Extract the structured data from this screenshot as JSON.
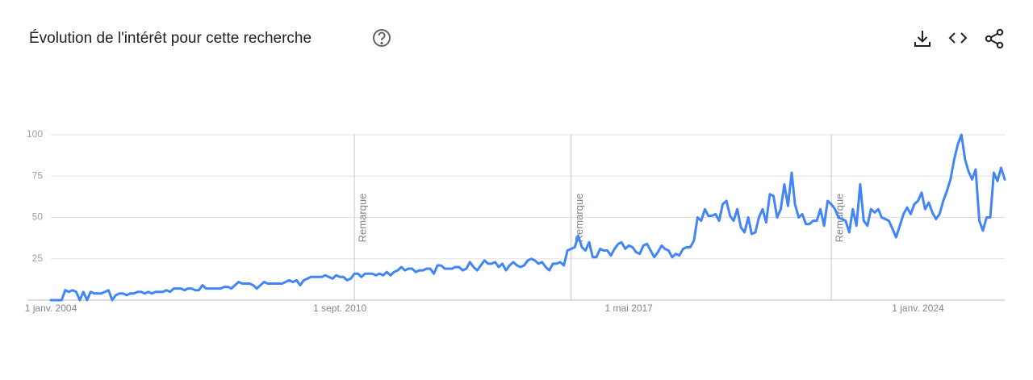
{
  "chart_data": {
    "type": "line",
    "title": "Évolution de l'intérêt pour cette recherche",
    "x": [
      "2004-01-01",
      "2004-02-01",
      "2004-03-01",
      "2004-04-01",
      "2004-05-01",
      "2004-06-01",
      "2004-07-01",
      "2004-08-01",
      "2004-09-01",
      "2004-10-01",
      "2004-11-01",
      "2004-12-01",
      "2005-01-01",
      "2005-02-01",
      "2005-03-01",
      "2005-04-01",
      "2005-05-01",
      "2005-06-01",
      "2005-07-01",
      "2005-08-01",
      "2005-09-01",
      "2005-10-01",
      "2005-11-01",
      "2005-12-01",
      "2006-01-01",
      "2006-02-01",
      "2006-03-01",
      "2006-04-01",
      "2006-05-01",
      "2006-06-01",
      "2006-07-01",
      "2006-08-01",
      "2006-09-01",
      "2006-10-01",
      "2006-11-01",
      "2006-12-01",
      "2007-01-01",
      "2007-02-01",
      "2007-03-01",
      "2007-04-01",
      "2007-05-01",
      "2007-06-01",
      "2007-07-01",
      "2007-08-01",
      "2007-09-01",
      "2007-10-01",
      "2007-11-01",
      "2007-12-01",
      "2008-01-01",
      "2008-02-01",
      "2008-03-01",
      "2008-04-01",
      "2008-05-01",
      "2008-06-01",
      "2008-07-01",
      "2008-08-01",
      "2008-09-01",
      "2008-10-01",
      "2008-11-01",
      "2008-12-01",
      "2009-01-01",
      "2009-02-01",
      "2009-03-01",
      "2009-04-01",
      "2009-05-01",
      "2009-06-01",
      "2009-07-01",
      "2009-08-01",
      "2009-09-01",
      "2009-10-01",
      "2009-11-01",
      "2009-12-01",
      "2010-01-01",
      "2010-02-01",
      "2010-03-01",
      "2010-04-01",
      "2010-05-01",
      "2010-06-01",
      "2010-07-01",
      "2010-08-01",
      "2010-09-01",
      "2010-10-01",
      "2010-11-01",
      "2010-12-01",
      "2011-01-01",
      "2011-02-01",
      "2011-03-01",
      "2011-04-01",
      "2011-05-01",
      "2011-06-01",
      "2011-07-01",
      "2011-08-01",
      "2011-09-01",
      "2011-10-01",
      "2011-11-01",
      "2011-12-01",
      "2012-01-01",
      "2012-02-01",
      "2012-03-01",
      "2012-04-01",
      "2012-05-01",
      "2012-06-01",
      "2012-07-01",
      "2012-08-01",
      "2012-09-01",
      "2012-10-01",
      "2012-11-01",
      "2012-12-01",
      "2013-01-01",
      "2013-02-01",
      "2013-03-01",
      "2013-04-01",
      "2013-05-01",
      "2013-06-01",
      "2013-07-01",
      "2013-08-01",
      "2013-09-01",
      "2013-10-01",
      "2013-11-01",
      "2013-12-01",
      "2014-01-01",
      "2014-02-01",
      "2014-03-01",
      "2014-04-01",
      "2014-05-01",
      "2014-06-01",
      "2014-07-01",
      "2014-08-01",
      "2014-09-01",
      "2014-10-01",
      "2014-11-01",
      "2014-12-01",
      "2015-01-01",
      "2015-02-01",
      "2015-03-01",
      "2015-04-01",
      "2015-05-01",
      "2015-06-01",
      "2015-07-01",
      "2015-08-01",
      "2015-09-01",
      "2015-10-01",
      "2015-11-01",
      "2015-12-01",
      "2016-01-01",
      "2016-02-01",
      "2016-03-01",
      "2016-04-01",
      "2016-05-01",
      "2016-06-01",
      "2016-07-01",
      "2016-08-01",
      "2016-09-01",
      "2016-10-01",
      "2016-11-01",
      "2016-12-01",
      "2017-01-01",
      "2017-02-01",
      "2017-03-01",
      "2017-04-01",
      "2017-05-01",
      "2017-06-01",
      "2017-07-01",
      "2017-08-01",
      "2017-09-01",
      "2017-10-01",
      "2017-11-01",
      "2017-12-01",
      "2018-01-01",
      "2018-02-01",
      "2018-03-01",
      "2018-04-01",
      "2018-05-01",
      "2018-06-01",
      "2018-07-01",
      "2018-08-01",
      "2018-09-01",
      "2018-10-01",
      "2018-11-01",
      "2018-12-01",
      "2019-01-01",
      "2019-02-01",
      "2019-03-01",
      "2019-04-01",
      "2019-05-01",
      "2019-06-01",
      "2019-07-01",
      "2019-08-01",
      "2019-09-01",
      "2019-10-01",
      "2019-11-01",
      "2019-12-01",
      "2020-01-01",
      "2020-02-01",
      "2020-03-01",
      "2020-04-01",
      "2020-05-01",
      "2020-06-01",
      "2020-07-01",
      "2020-08-01",
      "2020-09-01",
      "2020-10-01",
      "2020-11-01",
      "2020-12-01",
      "2021-01-01",
      "2021-02-01",
      "2021-03-01",
      "2021-04-01",
      "2021-05-01",
      "2021-06-01",
      "2021-07-01",
      "2021-08-01",
      "2021-09-01",
      "2021-10-01",
      "2021-11-01",
      "2021-12-01",
      "2022-01-01",
      "2022-02-01",
      "2022-03-01",
      "2022-04-01",
      "2022-05-01",
      "2022-06-01",
      "2022-07-01",
      "2022-08-01",
      "2022-09-01",
      "2022-10-01",
      "2022-11-01",
      "2022-12-01",
      "2023-01-01",
      "2023-02-01",
      "2023-03-01",
      "2023-04-01",
      "2023-05-01",
      "2023-06-01",
      "2023-07-01",
      "2023-08-01",
      "2023-09-01",
      "2023-10-01",
      "2023-11-01",
      "2023-12-01",
      "2024-01-01",
      "2024-02-01",
      "2024-03-01",
      "2024-04-01",
      "2024-05-01",
      "2024-06-01",
      "2024-07-01",
      "2024-08-01",
      "2024-09-01",
      "2024-10-01",
      "2024-11-01",
      "2024-12-01",
      "2025-01-01",
      "2025-02-01",
      "2025-03-01",
      "2025-04-01",
      "2025-05-01",
      "2025-06-01",
      "2025-07-01",
      "2025-08-01",
      "2025-09-01",
      "2025-10-01",
      "2025-11-01",
      "2025-12-01",
      "2026-01-01"
    ],
    "series": [
      {
        "color": "#4285f4",
        "values": [
          0,
          0,
          0,
          0,
          6,
          5,
          6,
          5,
          0,
          5,
          0,
          5,
          4,
          4,
          4,
          5,
          6,
          0,
          3,
          4,
          4,
          3,
          4,
          4,
          5,
          5,
          4,
          5,
          4,
          5,
          5,
          5,
          6,
          5,
          7,
          7,
          7,
          6,
          7,
          7,
          6,
          6,
          9,
          7,
          7,
          7,
          7,
          7,
          8,
          8,
          7,
          9,
          11,
          10,
          10,
          10,
          9,
          7,
          9,
          11,
          10,
          10,
          10,
          10,
          10,
          11,
          12,
          11,
          12,
          9,
          12,
          13,
          14,
          14,
          14,
          14,
          15,
          14,
          13,
          15,
          14,
          14,
          12,
          13,
          16,
          16,
          14,
          16,
          16,
          16,
          15,
          16,
          15,
          17,
          15,
          17,
          18,
          20,
          18,
          19,
          19,
          17,
          18,
          18,
          19,
          19,
          16,
          21,
          21,
          19,
          19,
          19,
          20,
          20,
          18,
          19,
          23,
          20,
          18,
          21,
          24,
          22,
          22,
          23,
          20,
          22,
          18,
          21,
          23,
          21,
          20,
          21,
          24,
          25,
          24,
          22,
          23,
          20,
          18,
          22,
          22,
          23,
          21,
          30,
          31,
          32,
          39,
          32,
          30,
          35,
          26,
          26,
          31,
          30,
          30,
          27,
          31,
          34,
          35,
          31,
          33,
          32,
          29,
          28,
          33,
          34,
          30,
          26,
          29,
          33,
          31,
          30,
          26,
          28,
          27,
          31,
          32,
          32,
          36,
          50,
          48,
          55,
          51,
          51,
          52,
          48,
          58,
          60,
          51,
          48,
          55,
          44,
          41,
          50,
          40,
          41,
          50,
          55,
          47,
          64,
          63,
          50,
          55,
          70,
          57,
          77,
          58,
          50,
          52,
          46,
          46,
          48,
          48,
          55,
          45,
          60,
          58,
          55,
          50,
          49,
          48,
          41,
          55,
          45,
          70,
          48,
          45,
          55,
          53,
          55,
          50,
          49,
          48,
          43,
          38,
          45,
          52,
          56,
          52,
          58,
          60,
          65,
          55,
          59,
          53,
          49,
          52,
          60,
          66,
          73,
          85,
          94,
          100,
          85,
          78,
          73,
          79,
          48,
          42,
          50,
          50,
          77,
          72,
          80,
          73
        ]
      }
    ],
    "xlim": [
      "2004-01-01",
      "2026-01-01"
    ],
    "xticks": [
      {
        "value": "2004-01-01",
        "label": "1 janv. 2004"
      },
      {
        "value": "2010-09-01",
        "label": "1 sept. 2010"
      },
      {
        "value": "2017-05-01",
        "label": "1 mai 2017"
      },
      {
        "value": "2024-01-01",
        "label": "1 janv. 2024"
      }
    ],
    "ylim": [
      0,
      100
    ],
    "yticks": [
      25,
      50,
      75,
      100
    ],
    "grid": true,
    "annotations": [
      {
        "x": "2011-01-01",
        "label": "Remarque"
      },
      {
        "x": "2016-01-01",
        "label": "Remarque"
      },
      {
        "x": "2022-01-01",
        "label": "Remarque"
      }
    ]
  }
}
